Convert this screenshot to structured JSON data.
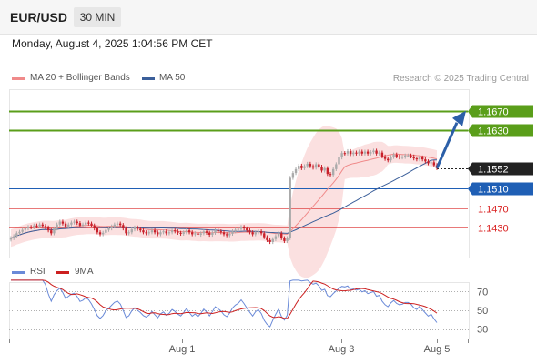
{
  "header": {
    "symbol": "EUR/USD",
    "timeframe": "30 MIN",
    "datetime": "Monday, August 4, 2025 1:04:56 PM CET",
    "credit": "Research © 2025 Trading Central"
  },
  "legend": {
    "ma20": "MA 20 + Bollinger Bands",
    "ma50": "MA 50",
    "rsi": "RSI",
    "ma9": "9MA"
  },
  "colors": {
    "bullish_level": "#5a9e1a",
    "current_price": "#222222",
    "pivot": "#1f5fb5",
    "support": "#d92020",
    "candle_up": "#aaaaaa",
    "candle_down": "#c8202a",
    "bollinger_fill": "#fbe0e0",
    "ma20_line": "#f08a8a",
    "ma50_line": "#3b5f9a",
    "rsi_line": "#6a8ad8",
    "ma9_line": "#cc2020",
    "arrow": "#2c5fa8"
  },
  "chart_data": [
    {
      "type": "candlestick",
      "title": "",
      "x_ticks": [
        "Aug 1",
        "Aug 3",
        "Aug 5"
      ],
      "ylim": [
        1.137,
        1.172
      ],
      "levels": [
        {
          "value": 1.167,
          "label": "1.1670",
          "kind": "resistance-target"
        },
        {
          "value": 1.163,
          "label": "1.1630",
          "kind": "resistance-target"
        },
        {
          "value": 1.1552,
          "label": "1.1552",
          "kind": "current"
        },
        {
          "value": 1.151,
          "label": "1.1510",
          "kind": "pivot"
        },
        {
          "value": 1.147,
          "label": "1.1470",
          "kind": "support"
        },
        {
          "value": 1.143,
          "label": "1.1430",
          "kind": "support"
        }
      ],
      "close": [
        1.1408,
        1.1412,
        1.1418,
        1.1421,
        1.1425,
        1.1428,
        1.1431,
        1.143,
        1.1434,
        1.1432,
        1.1436,
        1.1433,
        1.143,
        1.1424,
        1.1418,
        1.1428,
        1.1436,
        1.1442,
        1.1438,
        1.1432,
        1.1436,
        1.144,
        1.1442,
        1.1439,
        1.1434,
        1.1436,
        1.144,
        1.1438,
        1.1434,
        1.1428,
        1.142,
        1.1416,
        1.1419,
        1.1425,
        1.1428,
        1.1432,
        1.1436,
        1.1438,
        1.1435,
        1.1428,
        1.1418,
        1.142,
        1.1426,
        1.143,
        1.1427,
        1.1424,
        1.142,
        1.1418,
        1.142,
        1.1424,
        1.142,
        1.1416,
        1.142,
        1.1422,
        1.1418,
        1.142,
        1.1424,
        1.1422,
        1.1419,
        1.1417,
        1.142,
        1.1424,
        1.142,
        1.1416,
        1.1418,
        1.1415,
        1.1418,
        1.1422,
        1.1419,
        1.1415,
        1.1419,
        1.1424,
        1.1422,
        1.142,
        1.1416,
        1.1414,
        1.1417,
        1.1422,
        1.1425,
        1.1427,
        1.1431,
        1.1428,
        1.1424,
        1.142,
        1.1416,
        1.142,
        1.1422,
        1.1418,
        1.141,
        1.1404,
        1.14,
        1.1406,
        1.1412,
        1.1418,
        1.1408,
        1.1402,
        1.1408,
        1.1532,
        1.1542,
        1.155,
        1.1557,
        1.1552,
        1.1556,
        1.1561,
        1.1556,
        1.1553,
        1.156,
        1.1555,
        1.1547,
        1.1552,
        1.154,
        1.1538,
        1.155,
        1.156,
        1.1574,
        1.1583,
        1.1582,
        1.1587,
        1.1581,
        1.1584,
        1.1582,
        1.1586,
        1.1582,
        1.1586,
        1.1582,
        1.1585,
        1.1588,
        1.1582,
        1.1584,
        1.1576,
        1.1571,
        1.1568,
        1.1575,
        1.158,
        1.1576,
        1.1574,
        1.1575,
        1.1578,
        1.1578,
        1.1576,
        1.1572,
        1.157,
        1.1574,
        1.157,
        1.1566,
        1.1562,
        1.1564,
        1.1558,
        1.1552
      ],
      "rsi": {
        "ylim": [
          20,
          80
        ],
        "ticks": [
          70,
          50,
          30
        ]
      }
    }
  ]
}
